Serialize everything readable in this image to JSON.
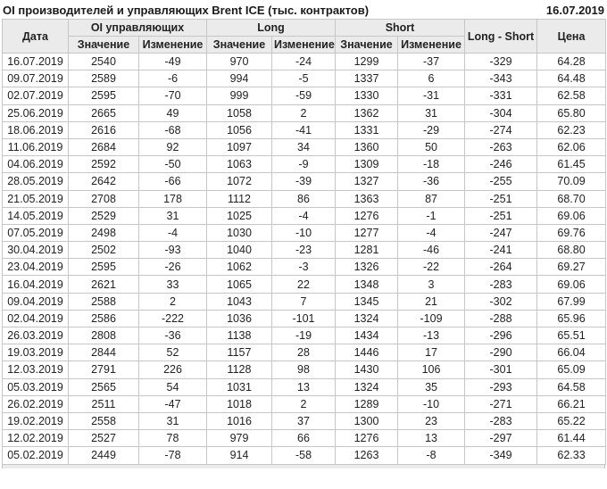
{
  "title": "OI производителей и управляющих Brent ICE (тыс. контрактов)",
  "report_date": "16.07.2019",
  "colors": {
    "positive": "#149414",
    "negative": "#cc0000",
    "header_bg": "#ebebeb",
    "border": "#c6c6c6"
  },
  "table": {
    "headers": {
      "date": "Дата",
      "oi_group": "OI управляющих",
      "long_group": "Long",
      "short_group": "Short",
      "long_short": "Long - Short",
      "price": "Цена",
      "value": "Значение",
      "change": "Изменение"
    },
    "change_columns": [
      2,
      4,
      6
    ],
    "rows": [
      [
        "16.07.2019",
        "2540",
        "-49",
        "970",
        "-24",
        "1299",
        "-37",
        "-329",
        "64.28"
      ],
      [
        "09.07.2019",
        "2589",
        "-6",
        "994",
        "-5",
        "1337",
        "6",
        "-343",
        "64.48"
      ],
      [
        "02.07.2019",
        "2595",
        "-70",
        "999",
        "-59",
        "1330",
        "-31",
        "-331",
        "62.58"
      ],
      [
        "25.06.2019",
        "2665",
        "49",
        "1058",
        "2",
        "1362",
        "31",
        "-304",
        "65.80"
      ],
      [
        "18.06.2019",
        "2616",
        "-68",
        "1056",
        "-41",
        "1331",
        "-29",
        "-274",
        "62.23"
      ],
      [
        "11.06.2019",
        "2684",
        "92",
        "1097",
        "34",
        "1360",
        "50",
        "-263",
        "62.06"
      ],
      [
        "04.06.2019",
        "2592",
        "-50",
        "1063",
        "-9",
        "1309",
        "-18",
        "-246",
        "61.45"
      ],
      [
        "28.05.2019",
        "2642",
        "-66",
        "1072",
        "-39",
        "1327",
        "-36",
        "-255",
        "70.09"
      ],
      [
        "21.05.2019",
        "2708",
        "178",
        "1112",
        "86",
        "1363",
        "87",
        "-251",
        "68.70"
      ],
      [
        "14.05.2019",
        "2529",
        "31",
        "1025",
        "-4",
        "1276",
        "-1",
        "-251",
        "69.06"
      ],
      [
        "07.05.2019",
        "2498",
        "-4",
        "1030",
        "-10",
        "1277",
        "-4",
        "-247",
        "69.76"
      ],
      [
        "30.04.2019",
        "2502",
        "-93",
        "1040",
        "-23",
        "1281",
        "-46",
        "-241",
        "68.80"
      ],
      [
        "23.04.2019",
        "2595",
        "-26",
        "1062",
        "-3",
        "1326",
        "-22",
        "-264",
        "69.27"
      ],
      [
        "16.04.2019",
        "2621",
        "33",
        "1065",
        "22",
        "1348",
        "3",
        "-283",
        "69.06"
      ],
      [
        "09.04.2019",
        "2588",
        "2",
        "1043",
        "7",
        "1345",
        "21",
        "-302",
        "67.99"
      ],
      [
        "02.04.2019",
        "2586",
        "-222",
        "1036",
        "-101",
        "1324",
        "-109",
        "-288",
        "65.96"
      ],
      [
        "26.03.2019",
        "2808",
        "-36",
        "1138",
        "-19",
        "1434",
        "-13",
        "-296",
        "65.51"
      ],
      [
        "19.03.2019",
        "2844",
        "52",
        "1157",
        "28",
        "1446",
        "17",
        "-290",
        "66.04"
      ],
      [
        "12.03.2019",
        "2791",
        "226",
        "1128",
        "98",
        "1430",
        "106",
        "-301",
        "65.09"
      ],
      [
        "05.03.2019",
        "2565",
        "54",
        "1031",
        "13",
        "1324",
        "35",
        "-293",
        "64.58"
      ],
      [
        "26.02.2019",
        "2511",
        "-47",
        "1018",
        "2",
        "1289",
        "-10",
        "-271",
        "66.21"
      ],
      [
        "19.02.2019",
        "2558",
        "31",
        "1016",
        "37",
        "1300",
        "23",
        "-283",
        "65.22"
      ],
      [
        "12.02.2019",
        "2527",
        "78",
        "979",
        "66",
        "1276",
        "13",
        "-297",
        "61.44"
      ],
      [
        "05.02.2019",
        "2449",
        "-78",
        "914",
        "-58",
        "1263",
        "-8",
        "-349",
        "62.33"
      ]
    ]
  }
}
